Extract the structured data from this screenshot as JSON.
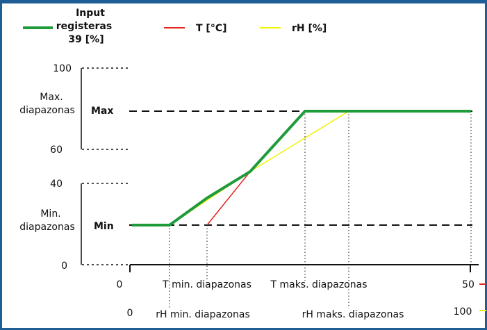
{
  "legend": {
    "input": {
      "line1": "Input",
      "line2": "registeras",
      "line3": "39  [%]",
      "color": "#1f9b3a"
    },
    "temperature": {
      "label": "T [°C]",
      "color": "#e2231a"
    },
    "humidity": {
      "label": "rH [%]",
      "color": "#f2f200"
    }
  },
  "y_ticks": {
    "v100": "100",
    "v60": "60",
    "v40": "40",
    "v0": "0"
  },
  "ranges": {
    "max_range_line1": "Max.",
    "max_range_line2": "diapazonas",
    "min_range_line1": "Min.",
    "min_range_line2": "diapazonas"
  },
  "levels": {
    "max": "Max",
    "min": "Min"
  },
  "x_axis_t": {
    "start": "0",
    "min_label": "T min. diapazonas",
    "max_label": "T maks. diapazonas",
    "end": "50"
  },
  "x_axis_rh": {
    "start": "0",
    "min_label": "rH min. diapazonas",
    "max_label": "rH maks. diapazonas",
    "end": "100"
  },
  "colors": {
    "frame": "#1f5d95",
    "dashed": "#111111"
  }
}
